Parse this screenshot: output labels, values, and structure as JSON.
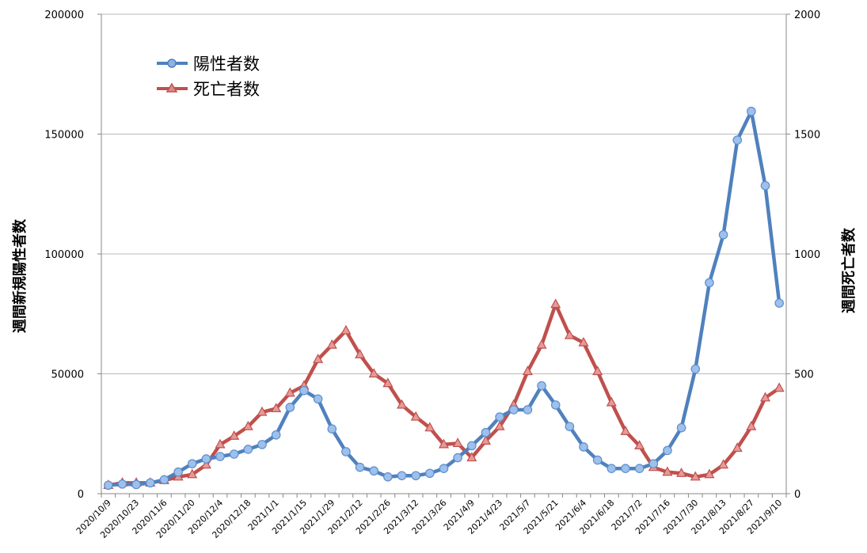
{
  "chart_data": {
    "type": "line",
    "y_left_label": "週間新規陽性者数",
    "y_right_label": "週間死亡者数",
    "y_left_lim": [
      0,
      200000
    ],
    "y_right_lim": [
      0,
      2000
    ],
    "y_left_ticks": [
      "0",
      "50000",
      "100000",
      "150000",
      "200000"
    ],
    "y_right_ticks": [
      "0",
      "500",
      "1000",
      "1500",
      "2000"
    ],
    "x_tick_labels": [
      "2020/10/9",
      "2020/10/23",
      "2020/11/6",
      "2020/11/20",
      "2020/12/4",
      "2020/12/18",
      "2021/1/1",
      "2021/1/15",
      "2021/1/29",
      "2021/2/12",
      "2021/2/26",
      "2021/3/12",
      "2021/3/26",
      "2021/4/9",
      "2021/4/23",
      "2021/5/7",
      "2021/5/21",
      "2021/6/4",
      "2021/6/18",
      "2021/7/2",
      "2021/7/16",
      "2021/7/30",
      "2021/8/13",
      "2021/8/27",
      "2021/9/10"
    ],
    "x_tick_every": 2,
    "grid": true,
    "legend_position": "top-left",
    "series": [
      {
        "name": "陽性者数",
        "axis": "left",
        "color": "#4f81bd",
        "marker": "circle",
        "values": [
          3500,
          4000,
          3800,
          4500,
          5800,
          9000,
          12500,
          14500,
          15500,
          16500,
          18500,
          20500,
          24500,
          36000,
          43000,
          39500,
          27000,
          17500,
          11000,
          9500,
          7000,
          7500,
          7500,
          8500,
          10500,
          15000,
          20000,
          25500,
          32000,
          35000,
          35000,
          45000,
          37000,
          28000,
          19500,
          14000,
          10500,
          10500,
          10500,
          12500,
          18000,
          27500,
          52000,
          88000,
          108000,
          147500,
          159500,
          128500,
          79500
        ]
      },
      {
        "name": "死亡者数",
        "axis": "right",
        "color": "#c0504d",
        "marker": "triangle",
        "values": [
          35,
          45,
          45,
          45,
          55,
          70,
          80,
          120,
          205,
          240,
          280,
          340,
          355,
          420,
          450,
          560,
          620,
          680,
          580,
          500,
          460,
          370,
          320,
          275,
          205,
          210,
          150,
          220,
          280,
          370,
          510,
          620,
          790,
          660,
          630,
          510,
          380,
          260,
          200,
          110,
          90,
          85,
          70,
          80,
          120,
          190,
          280,
          400,
          440
        ]
      }
    ]
  }
}
